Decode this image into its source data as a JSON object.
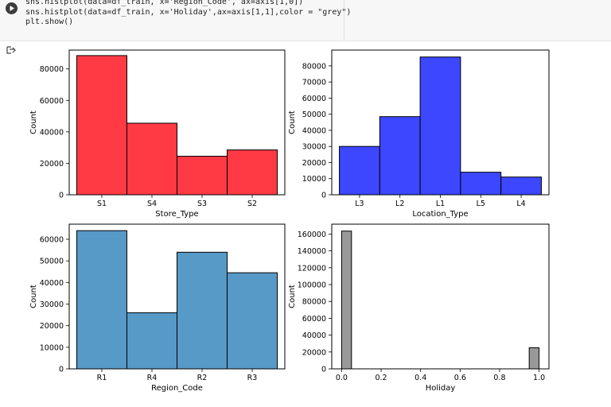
{
  "code_cell": {
    "lines": [
      "sns.histplot(data=df_train, x='Region_Code', ax=axis[1,0])",
      "sns.histplot(data=df_train, x='Holiday',ax=axis[1,1],color = \"grey\")",
      "plt.show()"
    ],
    "run_icon": "play-icon",
    "output_icon": "output-toggle-icon"
  },
  "chart_data": [
    {
      "type": "bar",
      "categories": [
        "S1",
        "S4",
        "S3",
        "S2"
      ],
      "values": [
        88500,
        45500,
        24500,
        28500
      ],
      "xlabel": "Store_Type",
      "ylabel": "Count",
      "yticks": [
        0,
        20000,
        40000,
        60000,
        80000
      ],
      "ylim": [
        0,
        92000
      ],
      "color": "#ff3a44",
      "grid": false
    },
    {
      "type": "bar",
      "categories": [
        "L3",
        "L2",
        "L1",
        "L5",
        "L4"
      ],
      "values": [
        30000,
        48500,
        85500,
        14000,
        11000
      ],
      "xlabel": "Location_Type",
      "ylabel": "Count",
      "yticks": [
        0,
        10000,
        20000,
        30000,
        40000,
        50000,
        60000,
        70000,
        80000
      ],
      "ylim": [
        0,
        89800
      ],
      "color": "#3c47ff",
      "grid": false
    },
    {
      "type": "bar",
      "categories": [
        "R1",
        "R4",
        "R2",
        "R3"
      ],
      "values": [
        64000,
        26000,
        54000,
        44500
      ],
      "xlabel": "Region_Code",
      "ylabel": "Count",
      "yticks": [
        0,
        10000,
        20000,
        30000,
        40000,
        50000,
        60000
      ],
      "ylim": [
        0,
        67000
      ],
      "color": "#5799c7",
      "grid": false
    },
    {
      "type": "bar",
      "bins": [
        {
          "x0": 0.0,
          "x1": 0.05,
          "count": 163500
        },
        {
          "x0": 0.95,
          "x1": 1.0,
          "count": 25000
        }
      ],
      "xlim": [
        -0.05,
        1.05
      ],
      "xticks": [
        "0.0",
        "0.2",
        "0.4",
        "0.6",
        "0.8",
        "1.0"
      ],
      "xlabel": "Holiday",
      "ylabel": "Count",
      "yticks": [
        0,
        20000,
        40000,
        60000,
        80000,
        100000,
        120000,
        140000,
        160000
      ],
      "ylim": [
        0,
        171700
      ],
      "color": "#999999",
      "grid": false
    }
  ]
}
